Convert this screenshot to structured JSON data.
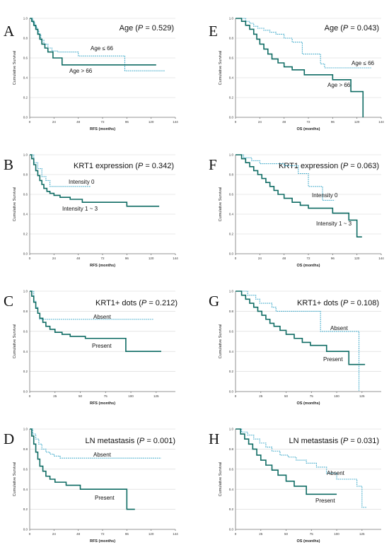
{
  "chart_data": [
    {
      "type": "line",
      "panel": "A",
      "title": "Age (P = 0.529)",
      "xlabel": "RFS (months)",
      "ylabel": "Cumulative Survival",
      "xlim": [
        0,
        144
      ],
      "ylim": [
        0,
        1
      ],
      "xticks": [
        0,
        24,
        48,
        72,
        96,
        120,
        144
      ],
      "yticks": [
        "0.0",
        "0.2",
        "0.4",
        "0.6",
        "0.8",
        "1.0"
      ],
      "series": [
        {
          "name": "Age ≤ 66",
          "style": "dotted",
          "x": [
            0,
            3,
            5,
            7,
            9,
            11,
            14,
            18,
            22,
            28,
            48,
            94,
            134
          ],
          "y": [
            1.0,
            0.96,
            0.92,
            0.88,
            0.84,
            0.78,
            0.74,
            0.7,
            0.67,
            0.66,
            0.62,
            0.47,
            0.47
          ]
        },
        {
          "name": "Age > 66",
          "style": "solid",
          "x": [
            0,
            2,
            4,
            6,
            8,
            10,
            12,
            15,
            18,
            23,
            32,
            60,
            125
          ],
          "y": [
            1.0,
            0.97,
            0.93,
            0.89,
            0.84,
            0.79,
            0.74,
            0.7,
            0.66,
            0.6,
            0.53,
            0.53,
            0.53
          ]
        }
      ]
    },
    {
      "type": "line",
      "panel": "B",
      "title": "KRT1 expression (P = 0.342)",
      "xlabel": "RFS (months)",
      "ylabel": "Cumulative Survival",
      "xlim": [
        0,
        144
      ],
      "ylim": [
        0,
        1
      ],
      "xticks": [
        0,
        24,
        48,
        72,
        96,
        120,
        144
      ],
      "yticks": [
        "0.0",
        "0.2",
        "0.4",
        "0.6",
        "0.8",
        "1.0"
      ],
      "series": [
        {
          "name": "Intensity 0",
          "style": "dotted",
          "x": [
            0,
            4,
            8,
            12,
            16,
            20,
            28,
            60
          ],
          "y": [
            1.0,
            0.92,
            0.86,
            0.78,
            0.74,
            0.68,
            0.68,
            0.68
          ]
        },
        {
          "name": "Intensity 1 ~ 3",
          "style": "solid",
          "x": [
            0,
            2,
            4,
            6,
            8,
            10,
            12,
            14,
            17,
            20,
            24,
            30,
            40,
            52,
            96,
            128
          ],
          "y": [
            1.0,
            0.96,
            0.9,
            0.84,
            0.79,
            0.74,
            0.7,
            0.66,
            0.63,
            0.61,
            0.59,
            0.57,
            0.55,
            0.52,
            0.48,
            0.48
          ]
        }
      ]
    },
    {
      "type": "line",
      "panel": "C",
      "title": "KRT1+ dots (P = 0.212)",
      "xlabel": "RFS (months)",
      "ylabel": "Cumulative Survival",
      "xlim": [
        0,
        144
      ],
      "ylim": [
        0,
        1
      ],
      "xticks": [
        0,
        25,
        50,
        75,
        100,
        125
      ],
      "yticks": [
        "0.0",
        "0.2",
        "0.4",
        "0.6",
        "0.8",
        "1.0"
      ],
      "series": [
        {
          "name": "Absent",
          "style": "dotted",
          "x": [
            0,
            4,
            6,
            8,
            10,
            122
          ],
          "y": [
            1.0,
            0.9,
            0.84,
            0.78,
            0.72,
            0.72
          ]
        },
        {
          "name": "Present",
          "style": "solid",
          "x": [
            0,
            2,
            4,
            6,
            8,
            10,
            13,
            16,
            20,
            25,
            32,
            40,
            55,
            95,
            130
          ],
          "y": [
            1.0,
            0.95,
            0.89,
            0.83,
            0.78,
            0.73,
            0.69,
            0.65,
            0.62,
            0.59,
            0.57,
            0.55,
            0.53,
            0.4,
            0.4
          ]
        }
      ]
    },
    {
      "type": "line",
      "panel": "D",
      "title": "LN metastasis (P = 0.001)",
      "xlabel": "RFS (months)",
      "ylabel": "Cumulative Survival",
      "xlim": [
        0,
        144
      ],
      "ylim": [
        0,
        1
      ],
      "xticks": [
        0,
        24,
        48,
        72,
        96,
        120,
        144
      ],
      "yticks": [
        "0.0",
        "0.2",
        "0.4",
        "0.6",
        "0.8",
        "1.0"
      ],
      "series": [
        {
          "name": "Absent",
          "style": "dotted",
          "x": [
            0,
            3,
            6,
            9,
            12,
            16,
            20,
            24,
            30,
            130
          ],
          "y": [
            1.0,
            0.95,
            0.9,
            0.85,
            0.8,
            0.77,
            0.75,
            0.73,
            0.71,
            0.71
          ]
        },
        {
          "name": "Present",
          "style": "solid",
          "x": [
            0,
            2,
            4,
            6,
            8,
            10,
            13,
            16,
            20,
            25,
            36,
            50,
            96,
            104
          ],
          "y": [
            1.0,
            0.93,
            0.85,
            0.77,
            0.7,
            0.63,
            0.58,
            0.53,
            0.5,
            0.47,
            0.44,
            0.4,
            0.2,
            0.2
          ]
        }
      ]
    },
    {
      "type": "line",
      "panel": "E",
      "title": "Age (P = 0.043)",
      "xlabel": "OS (months)",
      "ylabel": "Cumulative Survival",
      "xlim": [
        0,
        144
      ],
      "ylim": [
        0,
        1
      ],
      "xticks": [
        0,
        24,
        48,
        72,
        96,
        120,
        144
      ],
      "yticks": [
        "0.0",
        "0.2",
        "0.4",
        "0.6",
        "0.8",
        "1.0"
      ],
      "series": [
        {
          "name": "Age ≤ 66",
          "style": "dotted",
          "x": [
            0,
            10,
            14,
            18,
            22,
            28,
            34,
            40,
            48,
            56,
            66,
            84,
            88,
            134
          ],
          "y": [
            1.0,
            0.97,
            0.95,
            0.92,
            0.9,
            0.88,
            0.86,
            0.84,
            0.8,
            0.76,
            0.64,
            0.54,
            0.5,
            0.5
          ]
        },
        {
          "name": "Age > 66",
          "style": "solid",
          "x": [
            0,
            6,
            10,
            14,
            18,
            21,
            24,
            28,
            32,
            36,
            42,
            48,
            56,
            68,
            96,
            114,
            126,
            126
          ],
          "y": [
            1.0,
            0.97,
            0.93,
            0.89,
            0.84,
            0.79,
            0.74,
            0.69,
            0.64,
            0.59,
            0.55,
            0.51,
            0.48,
            0.43,
            0.38,
            0.26,
            0.26,
            0.0
          ]
        }
      ]
    },
    {
      "type": "line",
      "panel": "F",
      "title": "KRT1 expression (P = 0.063)",
      "xlabel": "OS (months)",
      "ylabel": "Cumulative Survival",
      "xlim": [
        0,
        144
      ],
      "ylim": [
        0,
        1
      ],
      "xticks": [
        0,
        24,
        48,
        72,
        96,
        120,
        144
      ],
      "yticks": [
        "0.0",
        "0.2",
        "0.4",
        "0.6",
        "0.8",
        "1.0"
      ],
      "series": [
        {
          "name": "Intensity 0",
          "style": "dotted",
          "x": [
            0,
            8,
            16,
            24,
            48,
            62,
            72,
            86,
            98
          ],
          "y": [
            1.0,
            0.97,
            0.94,
            0.91,
            0.89,
            0.81,
            0.68,
            0.54,
            0.54
          ]
        },
        {
          "name": "Intensity 1 ~ 3",
          "style": "solid",
          "x": [
            0,
            6,
            10,
            14,
            18,
            22,
            26,
            30,
            34,
            38,
            42,
            48,
            56,
            64,
            72,
            96,
            112,
            120,
            125
          ],
          "y": [
            1.0,
            0.96,
            0.92,
            0.88,
            0.84,
            0.8,
            0.76,
            0.72,
            0.68,
            0.64,
            0.6,
            0.56,
            0.52,
            0.49,
            0.46,
            0.41,
            0.34,
            0.17,
            0.17
          ]
        }
      ]
    },
    {
      "type": "line",
      "panel": "G",
      "title": "KRT1+ dots (P = 0.108)",
      "xlabel": "OS (months)",
      "ylabel": "Cumulative Survival",
      "xlim": [
        0,
        144
      ],
      "ylim": [
        0,
        1
      ],
      "xticks": [
        0,
        25,
        50,
        75,
        100,
        125
      ],
      "yticks": [
        "0.0",
        "0.2",
        "0.4",
        "0.6",
        "0.8",
        "1.0"
      ],
      "series": [
        {
          "name": "Absent",
          "style": "dotted",
          "x": [
            0,
            12,
            20,
            24,
            36,
            40,
            70,
            84,
            122,
            122
          ],
          "y": [
            1.0,
            0.96,
            0.92,
            0.88,
            0.84,
            0.8,
            0.8,
            0.6,
            0.6,
            0.0
          ]
        },
        {
          "name": "Present",
          "style": "solid",
          "x": [
            0,
            6,
            10,
            14,
            18,
            22,
            26,
            30,
            34,
            38,
            44,
            50,
            58,
            66,
            74,
            90,
            112,
            128
          ],
          "y": [
            1.0,
            0.96,
            0.92,
            0.88,
            0.84,
            0.8,
            0.76,
            0.72,
            0.68,
            0.65,
            0.61,
            0.57,
            0.53,
            0.49,
            0.46,
            0.4,
            0.27,
            0.27
          ]
        }
      ]
    },
    {
      "type": "line",
      "panel": "H",
      "title": "LN metastasis (P = 0.031)",
      "xlabel": "OS (months)",
      "ylabel": "Cumulative Survival",
      "xlim": [
        0,
        144
      ],
      "ylim": [
        0,
        1
      ],
      "xticks": [
        0,
        25,
        50,
        75,
        100,
        125
      ],
      "yticks": [
        "0.0",
        "0.2",
        "0.4",
        "0.6",
        "0.8",
        "1.0"
      ],
      "series": [
        {
          "name": "Absent",
          "style": "dotted",
          "x": [
            0,
            6,
            12,
            18,
            24,
            30,
            36,
            44,
            52,
            60,
            70,
            80,
            90,
            100,
            120,
            125,
            130
          ],
          "y": [
            1.0,
            0.97,
            0.94,
            0.9,
            0.86,
            0.82,
            0.78,
            0.74,
            0.72,
            0.69,
            0.66,
            0.62,
            0.56,
            0.5,
            0.43,
            0.22,
            0.22
          ]
        },
        {
          "name": "Present",
          "style": "solid",
          "x": [
            0,
            5,
            9,
            13,
            17,
            21,
            25,
            30,
            36,
            42,
            50,
            58,
            70,
            100
          ],
          "y": [
            1.0,
            0.95,
            0.9,
            0.85,
            0.8,
            0.74,
            0.69,
            0.64,
            0.59,
            0.54,
            0.48,
            0.43,
            0.35,
            0.35
          ]
        }
      ]
    }
  ],
  "colors": {
    "solid_series": "#0e6b63",
    "dotted_series": "#39a7c8",
    "grid": "#d6d6d6"
  }
}
